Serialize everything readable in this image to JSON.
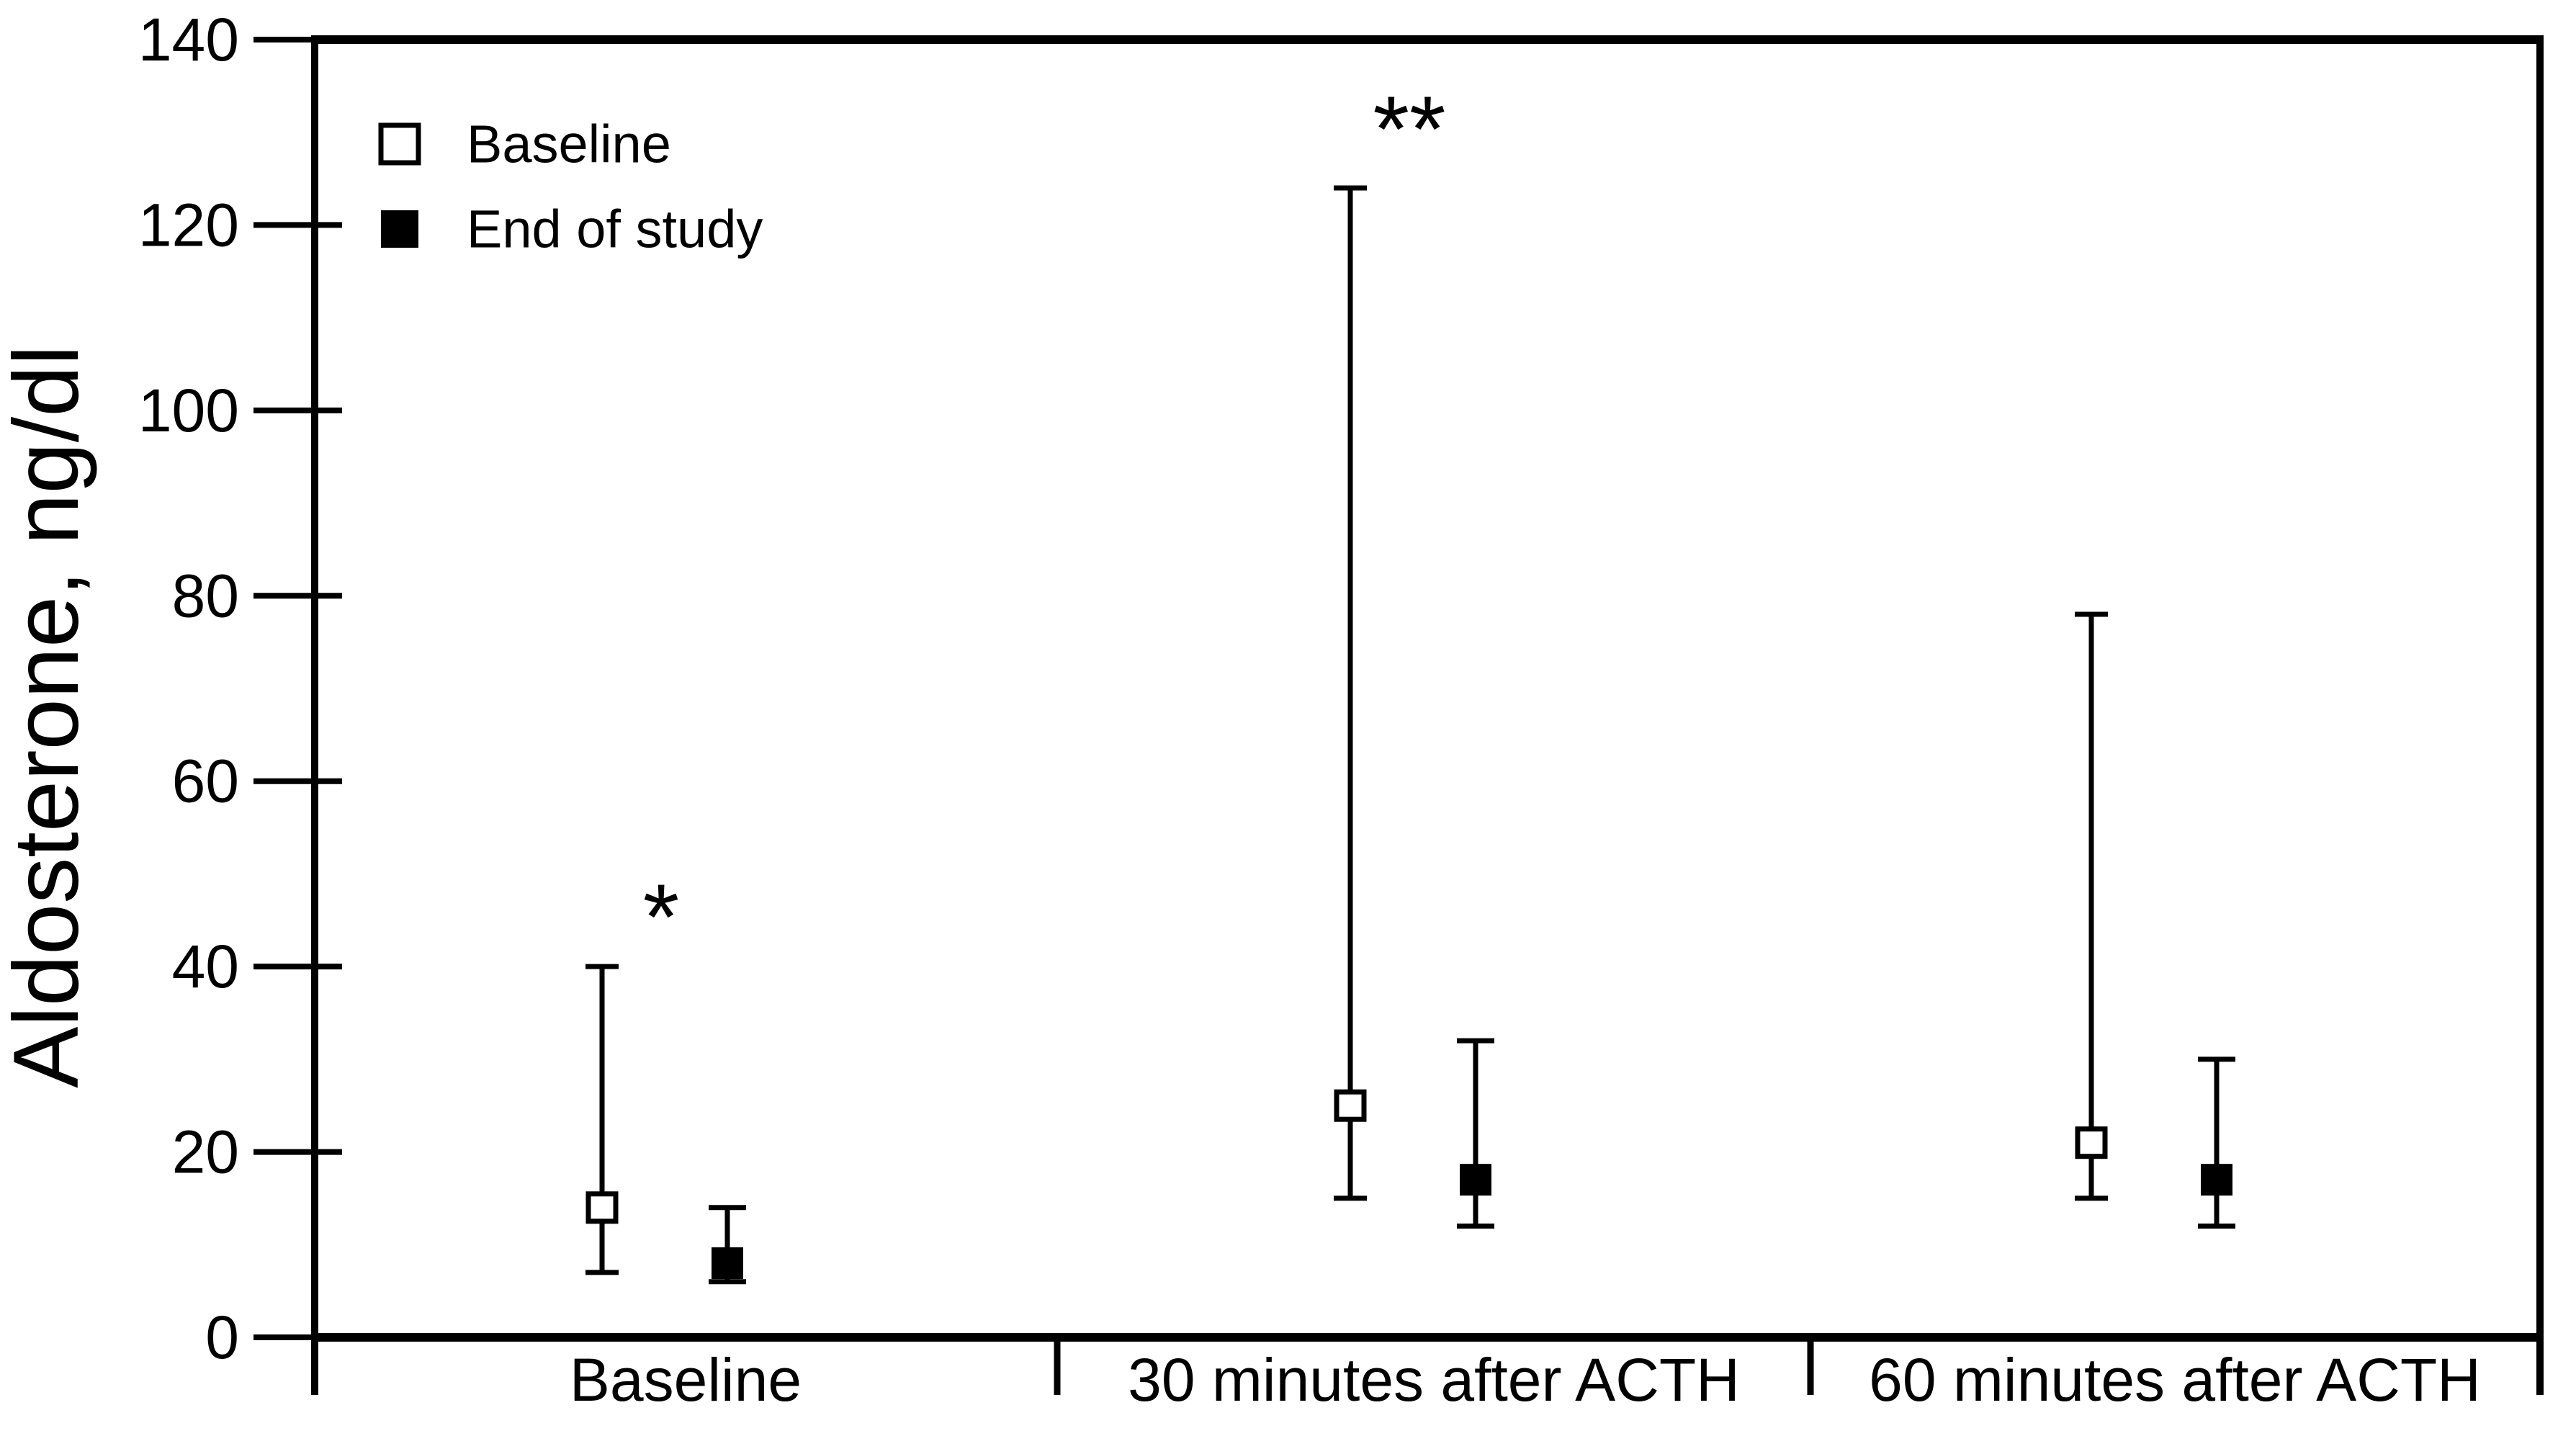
{
  "chart_data": {
    "type": "scatter",
    "title": "",
    "xlabel": "",
    "ylabel": "Aldosterone, ng/dl",
    "ylim": [
      0,
      140
    ],
    "yticks": [
      0,
      20,
      40,
      60,
      80,
      100,
      120,
      140
    ],
    "grid": false,
    "legend_position": "top-left-inside",
    "categories": [
      "Baseline",
      "30 minutes after ACTH",
      "60 minutes after ACTH"
    ],
    "series": [
      {
        "name": "Baseline",
        "marker": "open-square",
        "values": [
          14,
          25,
          21
        ],
        "range_low": [
          7,
          15,
          15
        ],
        "range_high": [
          40,
          124,
          78
        ]
      },
      {
        "name": "End of study",
        "marker": "filled-square",
        "values": [
          8,
          17,
          17
        ],
        "range_low": [
          6,
          12,
          12
        ],
        "range_high": [
          14,
          32,
          30
        ]
      }
    ],
    "annotations": [
      {
        "text": "*",
        "category_index": 0,
        "y": 47
      },
      {
        "text": "**",
        "category_index": 1,
        "y": 132
      }
    ],
    "colors": {
      "ink": "#000000",
      "background": "#ffffff"
    }
  }
}
